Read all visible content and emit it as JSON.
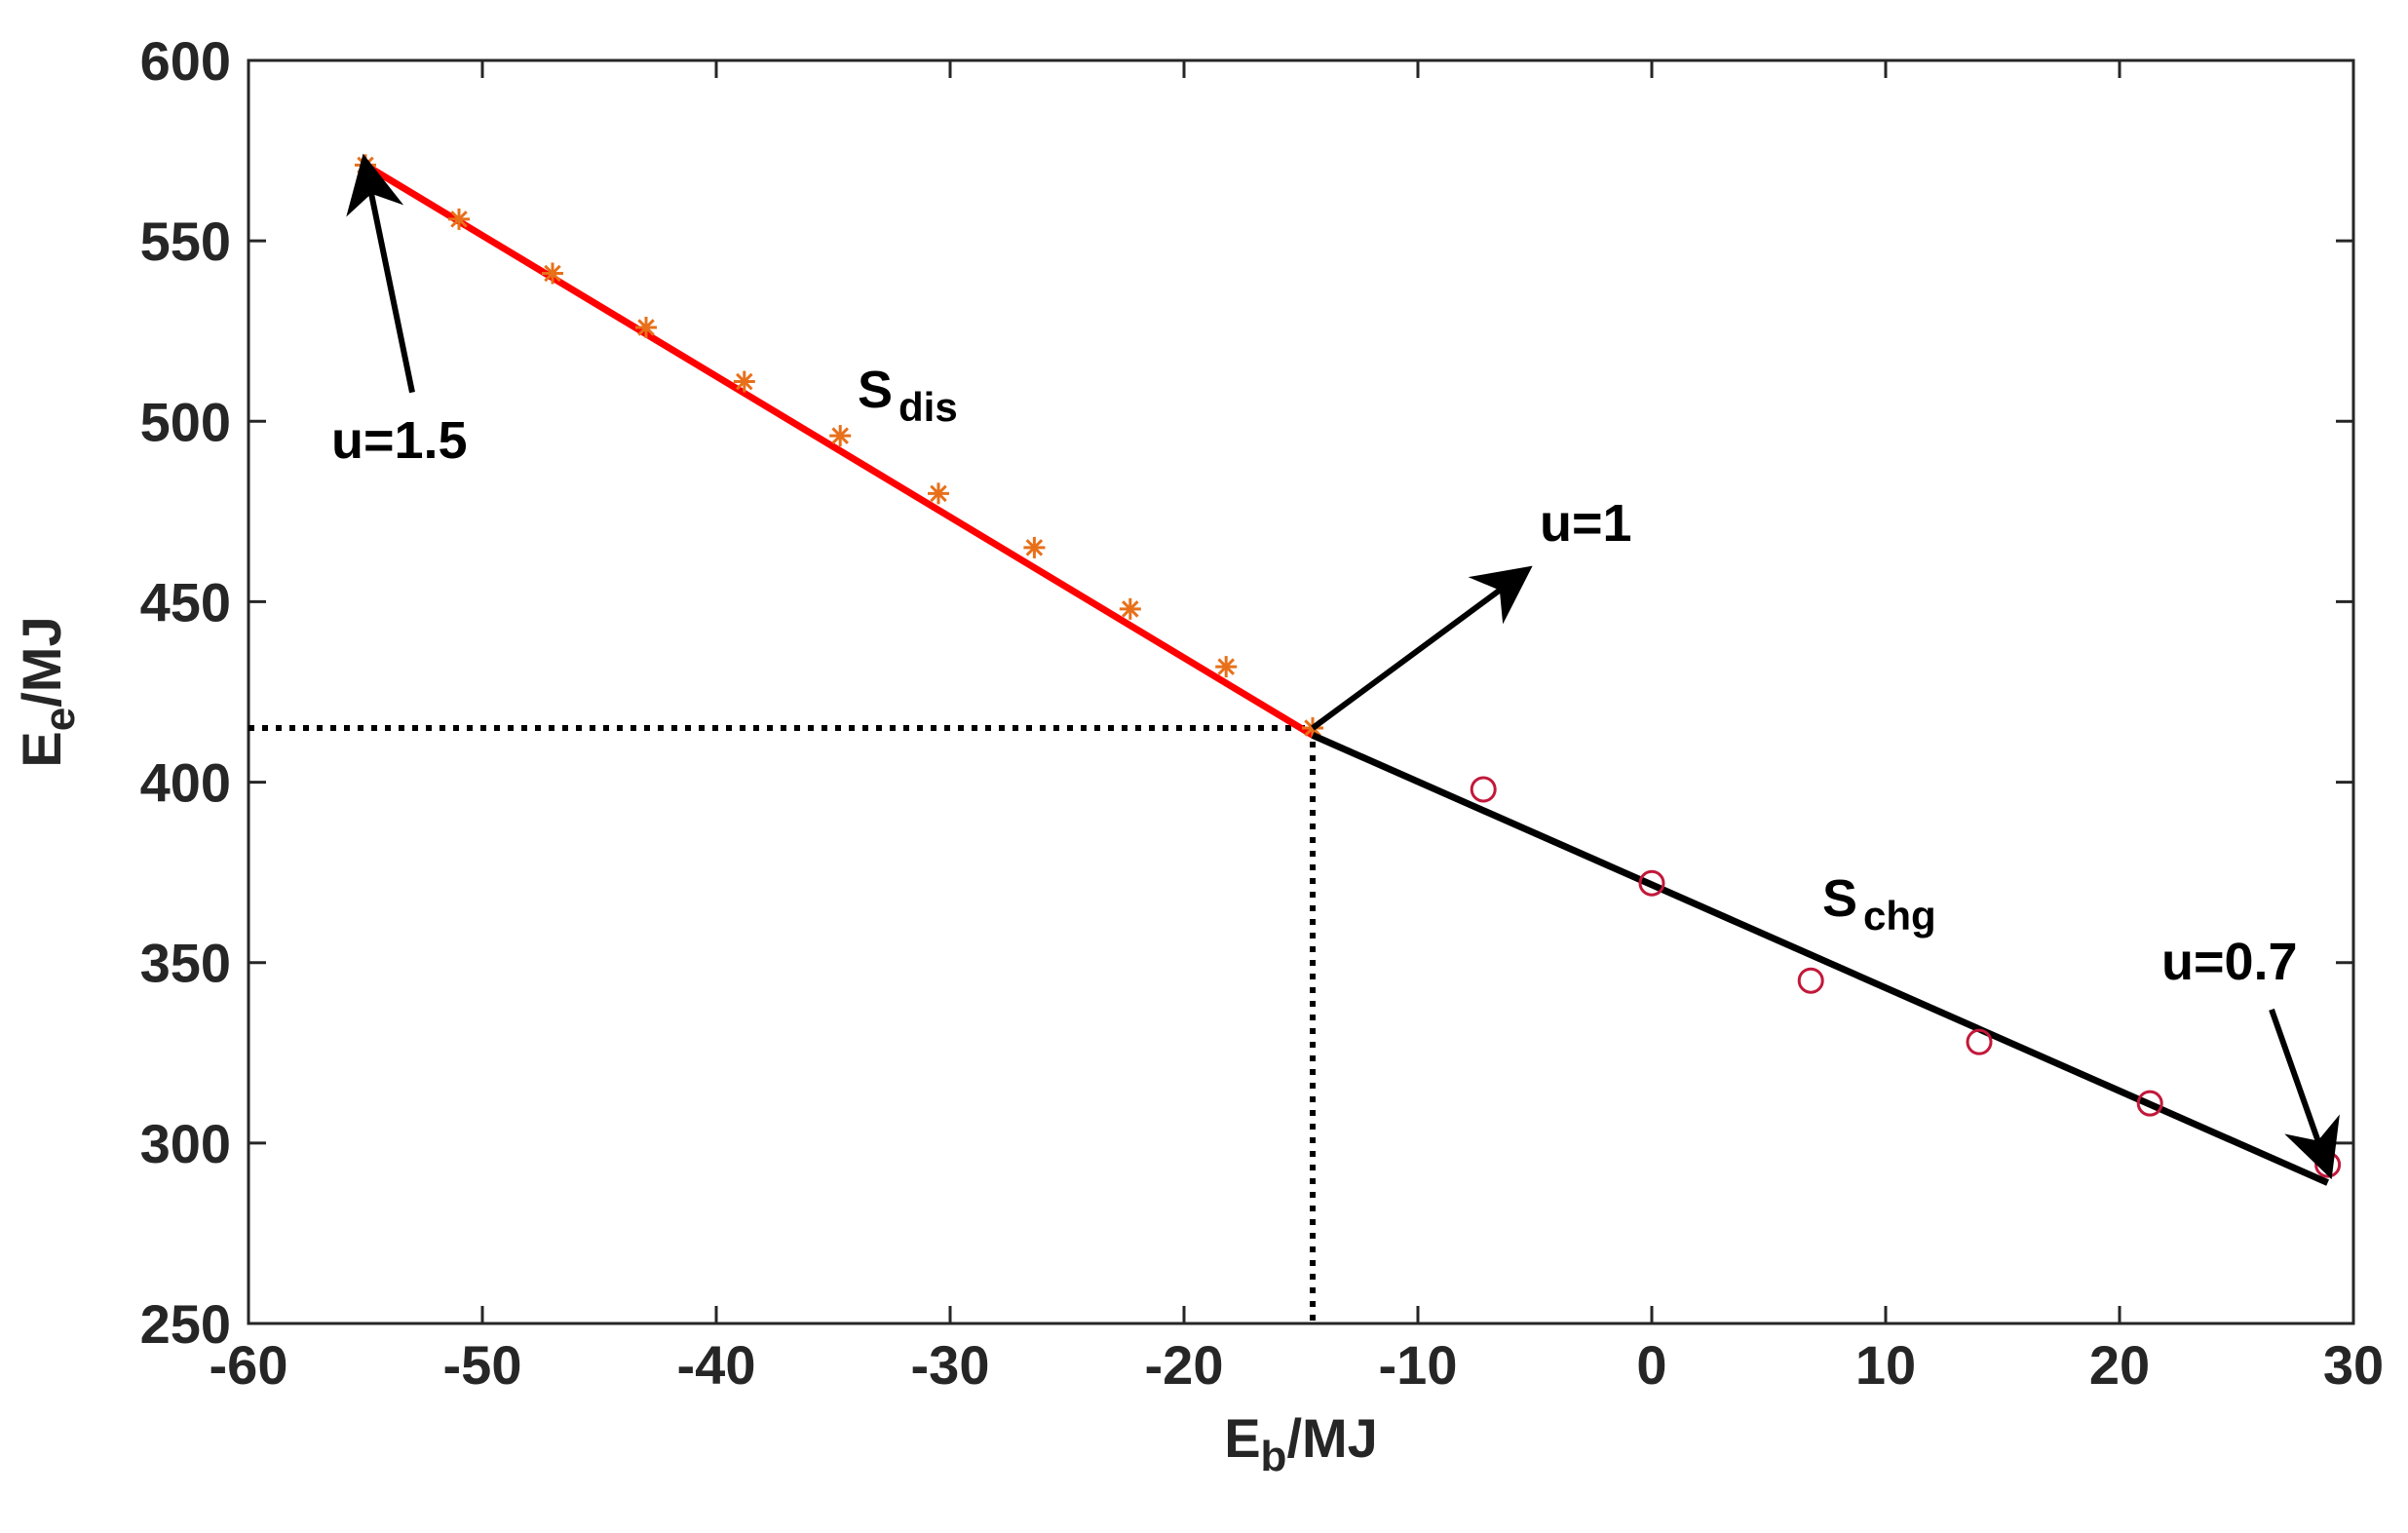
{
  "chart_data": {
    "type": "line",
    "xlabel": {
      "main": "E",
      "sub": "b",
      "unit": "/MJ"
    },
    "ylabel": {
      "main": "E",
      "sub": "e",
      "unit": "/MJ"
    },
    "xlim": [
      -60,
      30
    ],
    "ylim": [
      250,
      600
    ],
    "xticks": [
      -60,
      -50,
      -40,
      -30,
      -20,
      -10,
      0,
      10,
      20,
      30
    ],
    "yticks": [
      250,
      300,
      350,
      400,
      450,
      500,
      550,
      600
    ],
    "grid": false,
    "series": [
      {
        "key": "dis_line",
        "type": "line",
        "color": "#ff0000",
        "x": [
          -55,
          -14.5
        ],
        "y": [
          571,
          413
        ]
      },
      {
        "key": "dis_points",
        "type": "scatter",
        "marker": "asterisk",
        "color": "#e8701a",
        "x": [
          -55,
          -51,
          -47,
          -43,
          -38.8,
          -34.7,
          -30.5,
          -26.4,
          -22.3,
          -18.2,
          -14.5
        ],
        "y": [
          571,
          556,
          541,
          526,
          511,
          496,
          480,
          465,
          448,
          432,
          415
        ]
      },
      {
        "key": "chg_line",
        "type": "line",
        "color": "#000000",
        "x": [
          -14.5,
          28.9
        ],
        "y": [
          413,
          289
        ]
      },
      {
        "key": "chg_points",
        "type": "scatter",
        "marker": "circle",
        "color": "#c2183a",
        "x": [
          -7.2,
          0,
          6.8,
          14,
          21.3,
          28.9
        ],
        "y": [
          398,
          372,
          345,
          328,
          311,
          294
        ]
      }
    ],
    "reference_point": {
      "x": -14.5,
      "y": 415
    },
    "annotations": [
      {
        "key": "u15",
        "text": "u=1.5",
        "arrow_from": [
          -53,
          508
        ],
        "arrow_to": [
          -55,
          571
        ]
      },
      {
        "key": "u1",
        "text": "u=1",
        "arrow_from": [
          -14.5,
          415
        ],
        "arrow_to": [
          -5.5,
          458
        ]
      },
      {
        "key": "u07",
        "text": "u=0.7",
        "arrow_from": [
          26.5,
          337
        ],
        "arrow_to": [
          28.9,
          293
        ]
      }
    ],
    "labels": [
      {
        "key": "sdis",
        "main": "S",
        "sub": "dis"
      },
      {
        "key": "schg",
        "main": "S",
        "sub": "chg"
      }
    ]
  }
}
